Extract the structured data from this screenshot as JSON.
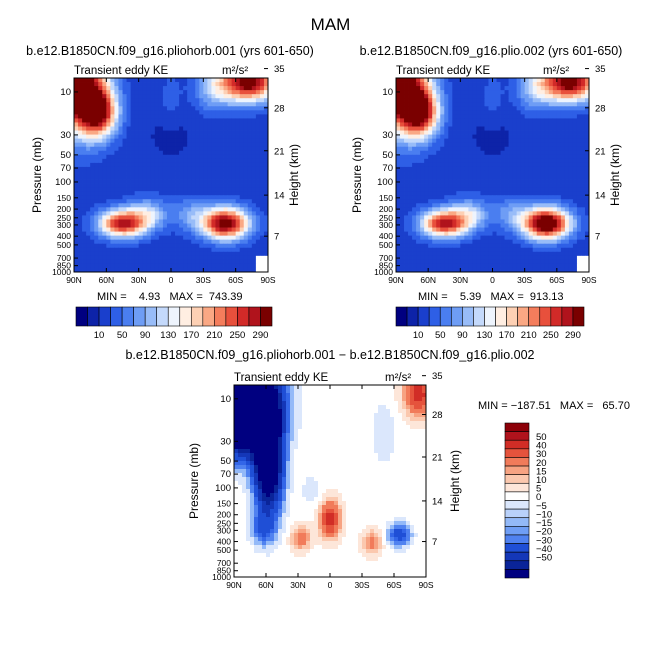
{
  "title": "MAM",
  "colors": {
    "frame": "#000000",
    "background": "#ffffff",
    "abs_scale": [
      "#000080",
      "#0d23a8",
      "#1a3fcc",
      "#2e5fe6",
      "#4a7ef0",
      "#6e9df5",
      "#98bcf8",
      "#c4d9fb",
      "#eef4fd",
      "#ffeee2",
      "#fdd0b4",
      "#faa884",
      "#f47d5c",
      "#e8503c",
      "#d22a28",
      "#b0131c",
      "#7a0000"
    ],
    "diff_scale": [
      "#000080",
      "#0a2499",
      "#1437b8",
      "#1f4fd6",
      "#3366e8",
      "#5082f0",
      "#6f9ef5",
      "#93b9f8",
      "#b9d1fa",
      "#dbe7fc",
      "#ffffff",
      "#fde6d9",
      "#fbc8ae",
      "#f7a382",
      "#f17b5a",
      "#e5533c",
      "#d12d26",
      "#b0131c",
      "#8c0008"
    ]
  },
  "chart_data": [
    {
      "type": "heatmap",
      "name": "panel-1",
      "title": "b.e12.B1850CN.f09_g16.pliohorb.001 (yrs 601-650)",
      "left_label": "Transient eddy KE",
      "units": "m²/s²",
      "ylabel": "Pressure (mb)",
      "right_label": "Height (km)",
      "xticks": [
        "90N",
        "60N",
        "30N",
        "0",
        "30S",
        "60S",
        "90S"
      ],
      "yticks": [
        "10",
        "30",
        "50",
        "70",
        "100",
        "150",
        "200",
        "250",
        "300",
        "400",
        "500",
        "700",
        "850",
        "1000"
      ],
      "rticks": [
        "35",
        "28",
        "21",
        "14",
        "7"
      ],
      "stats_text": "MIN =    4.93   MAX =  743.39",
      "stats": {
        "min": 4.93,
        "max": 743.39
      },
      "colorbar_labels": [
        "10",
        "50",
        "90",
        "130",
        "170",
        "210",
        "250",
        "290"
      ],
      "colorbar_levels": [
        10,
        30,
        50,
        70,
        90,
        110,
        130,
        150,
        170,
        190,
        210,
        230,
        250,
        270,
        290
      ]
    },
    {
      "type": "heatmap",
      "name": "panel-2",
      "title": "b.e12.B1850CN.f09_g16.plio.002 (yrs 601-650)",
      "left_label": "Transient eddy KE",
      "units": "m²/s²",
      "ylabel": "Pressure (mb)",
      "right_label": "Height (km)",
      "xticks": [
        "90N",
        "60N",
        "30N",
        "0",
        "30S",
        "60S",
        "90S"
      ],
      "yticks": [
        "10",
        "30",
        "50",
        "70",
        "100",
        "150",
        "200",
        "250",
        "300",
        "400",
        "500",
        "700",
        "850",
        "1000"
      ],
      "rticks": [
        "35",
        "28",
        "21",
        "14",
        "7"
      ],
      "stats_text": "MIN =    5.39   MAX =  913.13",
      "stats": {
        "min": 5.39,
        "max": 913.13
      },
      "colorbar_labels": [
        "10",
        "50",
        "90",
        "130",
        "170",
        "210",
        "250",
        "290"
      ],
      "colorbar_levels": [
        10,
        30,
        50,
        70,
        90,
        110,
        130,
        150,
        170,
        190,
        210,
        230,
        250,
        270,
        290
      ]
    },
    {
      "type": "heatmap",
      "name": "panel-diff",
      "title": "b.e12.B1850CN.f09_g16.pliohorb.001 − b.e12.B1850CN.f09_g16.plio.002",
      "left_label": "Transient eddy KE",
      "units": "m²/s²",
      "ylabel": "Pressure (mb)",
      "right_label": "Height (km)",
      "xticks": [
        "90N",
        "60N",
        "30N",
        "0",
        "30S",
        "60S",
        "90S"
      ],
      "yticks": [
        "10",
        "30",
        "50",
        "70",
        "100",
        "150",
        "200",
        "250",
        "300",
        "400",
        "500",
        "700",
        "850",
        "1000"
      ],
      "rticks": [
        "35",
        "28",
        "21",
        "14",
        "7"
      ],
      "stats_text": "MIN = −187.51   MAX =   65.70",
      "stats": {
        "min": -187.51,
        "max": 65.7
      },
      "colorbar_labels": [
        "50",
        "40",
        "30",
        "20",
        "15",
        "10",
        "5",
        "0",
        "−5",
        "−10",
        "−15",
        "−20",
        "−30",
        "−40",
        "−50"
      ],
      "colorbar_levels": [
        50,
        40,
        30,
        20,
        15,
        10,
        5,
        0,
        -5,
        -10,
        -15,
        -20,
        -30,
        -40,
        -50
      ]
    }
  ]
}
